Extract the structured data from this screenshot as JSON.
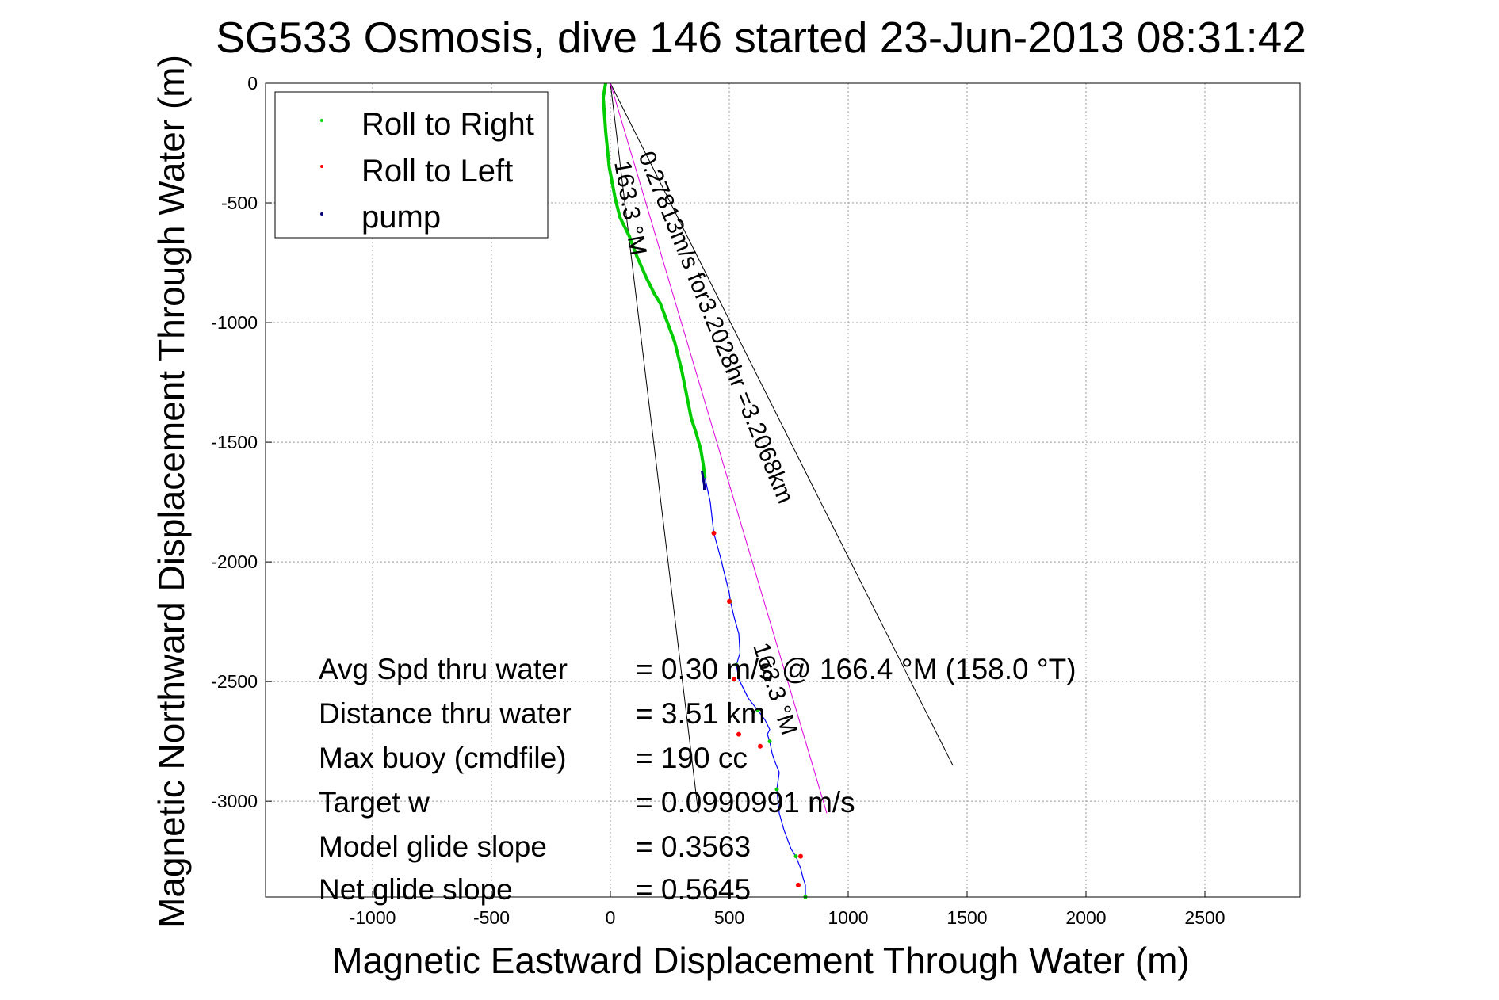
{
  "chart_data": {
    "type": "line",
    "title": "SG533 Osmosis, dive 146 started 23-Jun-2013 08:31:42",
    "xlabel": "Magnetic Eastward Displacement Through Water (m)",
    "ylabel": "Magnetic Northward Displacement Through Water (m)",
    "xlim": [
      -1450,
      2900
    ],
    "ylim": [
      -3400,
      0
    ],
    "xticks": [
      -1000,
      -500,
      0,
      500,
      1000,
      1500,
      2000,
      2500
    ],
    "xtick_labels": [
      "-1000",
      "-500",
      "0",
      "500",
      "1000",
      "1500",
      "2000",
      "2500"
    ],
    "yticks": [
      0,
      -500,
      -1000,
      -1500,
      -2000,
      -2500,
      -3000
    ],
    "ytick_labels": [
      "0",
      "-500",
      "-1000",
      "-1500",
      "-2000",
      "-2500",
      "-3000"
    ],
    "grid": true,
    "legend_placement": "top-left",
    "legend": [
      {
        "label": "Roll to Right",
        "color": "#00dd00"
      },
      {
        "label": "Roll to Left",
        "color": "#ff0000"
      },
      {
        "label": "pump",
        "color": "#000080"
      }
    ],
    "series": [
      {
        "name": "Roll to Right",
        "color": "#00cc00",
        "x": [
          -20,
          -30,
          -20,
          -5,
          20,
          40,
          80,
          110,
          150,
          185,
          210,
          240,
          270,
          300,
          320,
          340,
          360,
          380,
          390,
          398
        ],
        "y": [
          0,
          -60,
          -200,
          -350,
          -480,
          -560,
          -640,
          -720,
          -810,
          -880,
          -920,
          -1000,
          -1080,
          -1200,
          -1300,
          -1400,
          -1460,
          -1530,
          -1590,
          -1650
        ]
      },
      {
        "name": "Roll to Left",
        "color": "#ff0000",
        "x": [
          435,
          500,
          520,
          540,
          630,
          800,
          790
        ],
        "y": [
          -1880,
          -2165,
          -2490,
          -2720,
          -2770,
          -3230,
          -3350
        ]
      },
      {
        "name": "pump",
        "color": "#000080",
        "x": [
          385,
          390,
          395,
          395
        ],
        "y": [
          -1620,
          -1650,
          -1680,
          -1700
        ]
      },
      {
        "name": "track",
        "color": "#0000ff",
        "x": [
          398,
          420,
          435,
          460,
          480,
          500,
          505,
          520,
          540,
          545,
          530,
          540,
          550,
          580,
          620,
          650,
          670,
          660,
          670,
          680,
          690,
          710,
          700,
          710,
          730,
          760,
          780,
          800,
          810,
          820,
          820
        ],
        "y": [
          -1650,
          -1750,
          -1880,
          -1970,
          -2050,
          -2130,
          -2165,
          -2230,
          -2300,
          -2380,
          -2430,
          -2490,
          -2510,
          -2570,
          -2620,
          -2660,
          -2700,
          -2720,
          -2750,
          -2800,
          -2830,
          -2880,
          -2950,
          -3050,
          -3120,
          -3200,
          -3230,
          -3280,
          -3320,
          -3350,
          -3400
        ]
      },
      {
        "name": "magenta-track",
        "color": "#dd00dd",
        "x": [
          0,
          910
        ],
        "y": [
          0,
          -3050
        ]
      },
      {
        "name": "cone-left",
        "color": "#000000",
        "x": [
          0,
          370
        ],
        "y": [
          0,
          -3050
        ]
      },
      {
        "name": "cone-right",
        "color": "#000000",
        "x": [
          0,
          1440
        ],
        "y": [
          0,
          -2850
        ]
      }
    ],
    "annotations": {
      "diag_speed": "0.27813m/s for3.2028hr =3.2068km",
      "heading_top": "163.3 °M",
      "heading_bottom": "163.3 °M",
      "stats": [
        {
          "label": "Avg Spd thru water",
          "value": "=  0.30 m/s @ 166.4 °M (158.0 °T)"
        },
        {
          "label": "Distance thru water",
          "value": "=  3.51 km"
        },
        {
          "label": "Max buoy (cmdfile)",
          "value": "= 190 cc"
        },
        {
          "label": "Target w",
          "value": "= 0.0990991 m/s"
        },
        {
          "label": "Model glide slope",
          "value": "= 0.3563"
        },
        {
          "label": "Net glide slope",
          "value": "= 0.5645"
        }
      ]
    }
  }
}
